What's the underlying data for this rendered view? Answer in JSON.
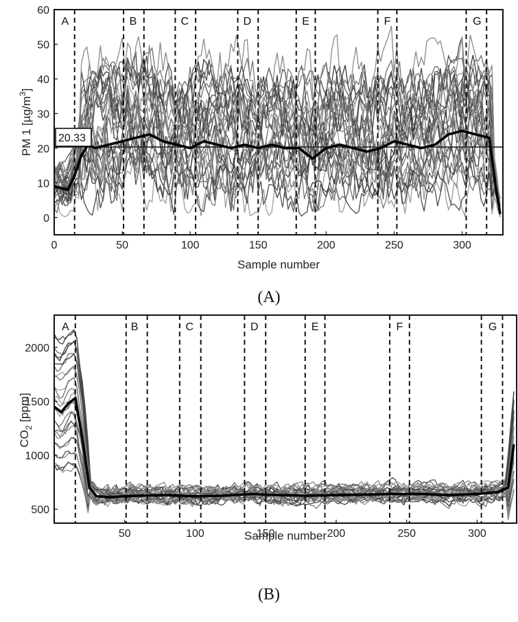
{
  "chart_data": [
    {
      "type": "line",
      "panel": "(A)",
      "xlabel": "Sample number",
      "ylabel": "PM 1 [µg/m",
      "ylabel_sup": "3",
      "ylabel_end": "]",
      "xlim": [
        0,
        330
      ],
      "ylim": [
        -5,
        60
      ],
      "xticks": [
        0,
        50,
        100,
        150,
        200,
        250,
        300
      ],
      "yticks": [
        0,
        10,
        20,
        30,
        40,
        50,
        60
      ],
      "grid": false,
      "legend": "none",
      "reference_line": {
        "y": 20.33,
        "label": "20.33"
      },
      "boundaries": [
        15,
        51,
        66,
        89,
        104,
        135,
        150,
        178,
        192,
        238,
        252,
        303,
        318
      ],
      "regions": [
        {
          "label": "A",
          "x": 8
        },
        {
          "label": "B",
          "x": 58
        },
        {
          "label": "C",
          "x": 96
        },
        {
          "label": "D",
          "x": 142
        },
        {
          "label": "E",
          "x": 185
        },
        {
          "label": "F",
          "x": 245
        },
        {
          "label": "G",
          "x": 311
        }
      ],
      "mean_series": {
        "x": [
          0,
          10,
          15,
          20,
          25,
          30,
          40,
          50,
          60,
          70,
          80,
          90,
          100,
          110,
          120,
          130,
          140,
          150,
          160,
          170,
          180,
          190,
          200,
          210,
          220,
          230,
          240,
          250,
          260,
          270,
          280,
          290,
          300,
          310,
          320,
          325,
          328
        ],
        "y": [
          9,
          8,
          12,
          18,
          21,
          20,
          21,
          22,
          23,
          24,
          22,
          21,
          20,
          22,
          21,
          20,
          21,
          20,
          21,
          20,
          20,
          17,
          20,
          21,
          20,
          19,
          20,
          22,
          21,
          20,
          21,
          24,
          25,
          24,
          23,
          8,
          1
        ]
      },
      "sensor_count": 28,
      "typical_range": [
        2,
        55
      ]
    },
    {
      "type": "line",
      "panel": "(B)",
      "xlabel": "Sample number",
      "ylabel": "CO",
      "ylabel_sub": "2",
      "ylabel_end": " [ppm]",
      "xlim": [
        0,
        328
      ],
      "ylim": [
        370,
        2300
      ],
      "xticks": [
        50,
        100,
        150,
        200,
        250,
        300
      ],
      "yticks": [
        500,
        1000,
        1500,
        2000
      ],
      "grid": false,
      "legend": "none",
      "boundaries": [
        15,
        51,
        66,
        89,
        104,
        135,
        150,
        178,
        192,
        238,
        252,
        303,
        318
      ],
      "regions": [
        {
          "label": "A",
          "x": 8
        },
        {
          "label": "B",
          "x": 57
        },
        {
          "label": "C",
          "x": 96
        },
        {
          "label": "D",
          "x": 142
        },
        {
          "label": "E",
          "x": 185
        },
        {
          "label": "F",
          "x": 245
        },
        {
          "label": "G",
          "x": 311
        }
      ],
      "mean_series": {
        "x": [
          0,
          5,
          10,
          15,
          20,
          25,
          30,
          40,
          50,
          60,
          80,
          100,
          120,
          140,
          160,
          180,
          200,
          220,
          240,
          260,
          280,
          300,
          315,
          322,
          326
        ],
        "y": [
          1450,
          1400,
          1480,
          1530,
          1150,
          700,
          620,
          610,
          620,
          625,
          630,
          620,
          625,
          640,
          630,
          625,
          630,
          635,
          640,
          640,
          630,
          640,
          660,
          700,
          1100
        ]
      },
      "sensor_count": 28,
      "typical_range": [
        480,
        2250
      ]
    }
  ]
}
